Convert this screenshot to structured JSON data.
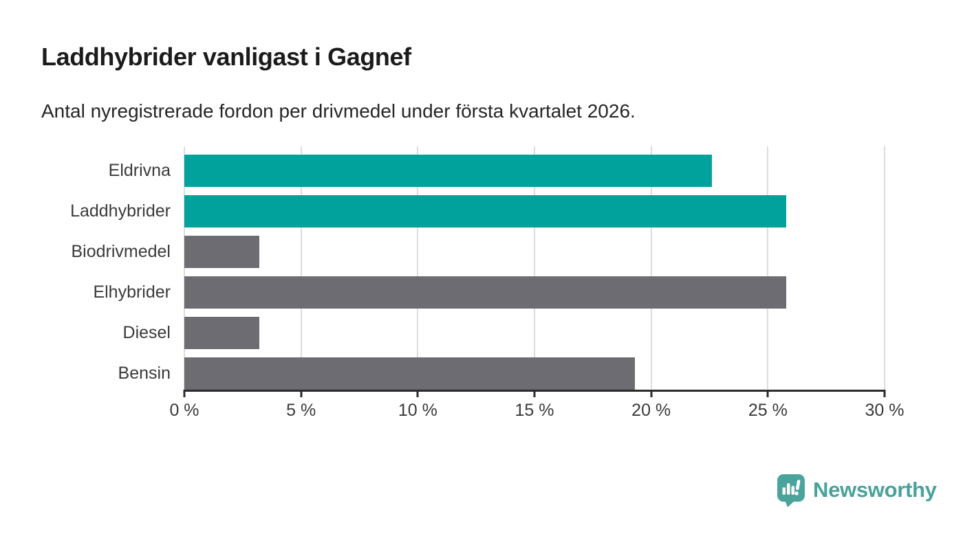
{
  "header": {
    "title": "Laddhybrider vanligast i Gagnef",
    "subtitle": "Antal nyregistrerade fordon per drivmedel under första kvartalet 2026."
  },
  "chart_data": {
    "type": "bar",
    "orientation": "horizontal",
    "categories": [
      "Eldrivna",
      "Laddhybrider",
      "Biodrivmedel",
      "Elhybrider",
      "Diesel",
      "Bensin"
    ],
    "values": [
      22.6,
      25.8,
      3.2,
      25.8,
      3.2,
      19.3
    ],
    "unit": "%",
    "xlim": [
      0,
      30
    ],
    "x_ticks": [
      0,
      5,
      10,
      15,
      20,
      25,
      30
    ],
    "x_tick_labels": [
      "0 %",
      "5 %",
      "10 %",
      "15 %",
      "20 %",
      "25 %",
      "30 %"
    ],
    "grid": true,
    "bar_colors": [
      "#00a29b",
      "#00a29b",
      "#6c6c72",
      "#6c6c72",
      "#6c6c72",
      "#6c6c72"
    ],
    "highlight_color": "#00a29b",
    "default_color": "#6c6c72",
    "title": "Laddhybrider vanligast i Gagnef",
    "xlabel": "",
    "ylabel": ""
  },
  "footer": {
    "brand": "Newsworthy",
    "brand_color": "#48a29a"
  }
}
